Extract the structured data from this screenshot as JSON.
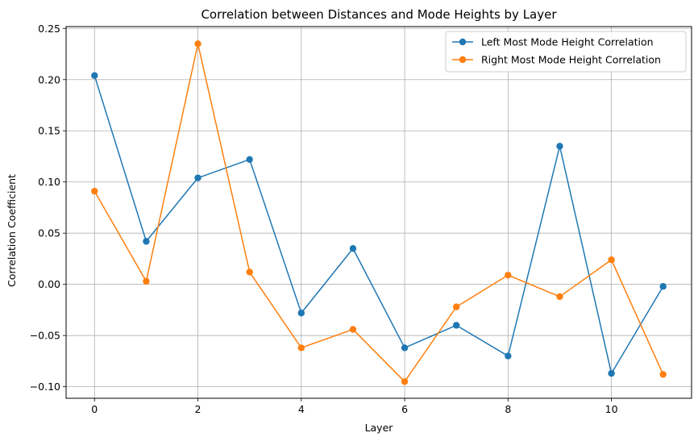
{
  "chart_data": {
    "type": "line",
    "title": "Correlation between Distances and Mode Heights by Layer",
    "xlabel": "Layer",
    "ylabel": "Correlation Coefficient",
    "x": [
      0,
      1,
      2,
      3,
      4,
      5,
      6,
      7,
      8,
      9,
      10,
      11
    ],
    "xlim": [
      -0.55,
      11.55
    ],
    "ylim": [
      -0.1113,
      0.2518
    ],
    "xticks": [
      0,
      2,
      4,
      6,
      8,
      10
    ],
    "xtick_labels": [
      "0",
      "2",
      "4",
      "6",
      "8",
      "10"
    ],
    "yticks": [
      -0.1,
      -0.05,
      0.0,
      0.05,
      0.1,
      0.15,
      0.2,
      0.25
    ],
    "ytick_labels": [
      "−0.10",
      "−0.05",
      "0.00",
      "0.05",
      "0.10",
      "0.15",
      "0.20",
      "0.25"
    ],
    "grid": true,
    "legend_position": "top-right",
    "series": [
      {
        "name": "Left Most Mode Height Correlation",
        "color": "#1f77b4",
        "values": [
          0.204,
          0.042,
          0.104,
          0.122,
          -0.028,
          0.035,
          -0.062,
          -0.04,
          -0.07,
          0.135,
          -0.087,
          -0.002
        ]
      },
      {
        "name": "Right Most Mode Height Correlation",
        "color": "#ff7f0e",
        "values": [
          0.091,
          0.003,
          0.235,
          0.012,
          -0.062,
          -0.044,
          -0.095,
          -0.022,
          0.009,
          -0.012,
          0.024,
          -0.088
        ]
      }
    ]
  }
}
